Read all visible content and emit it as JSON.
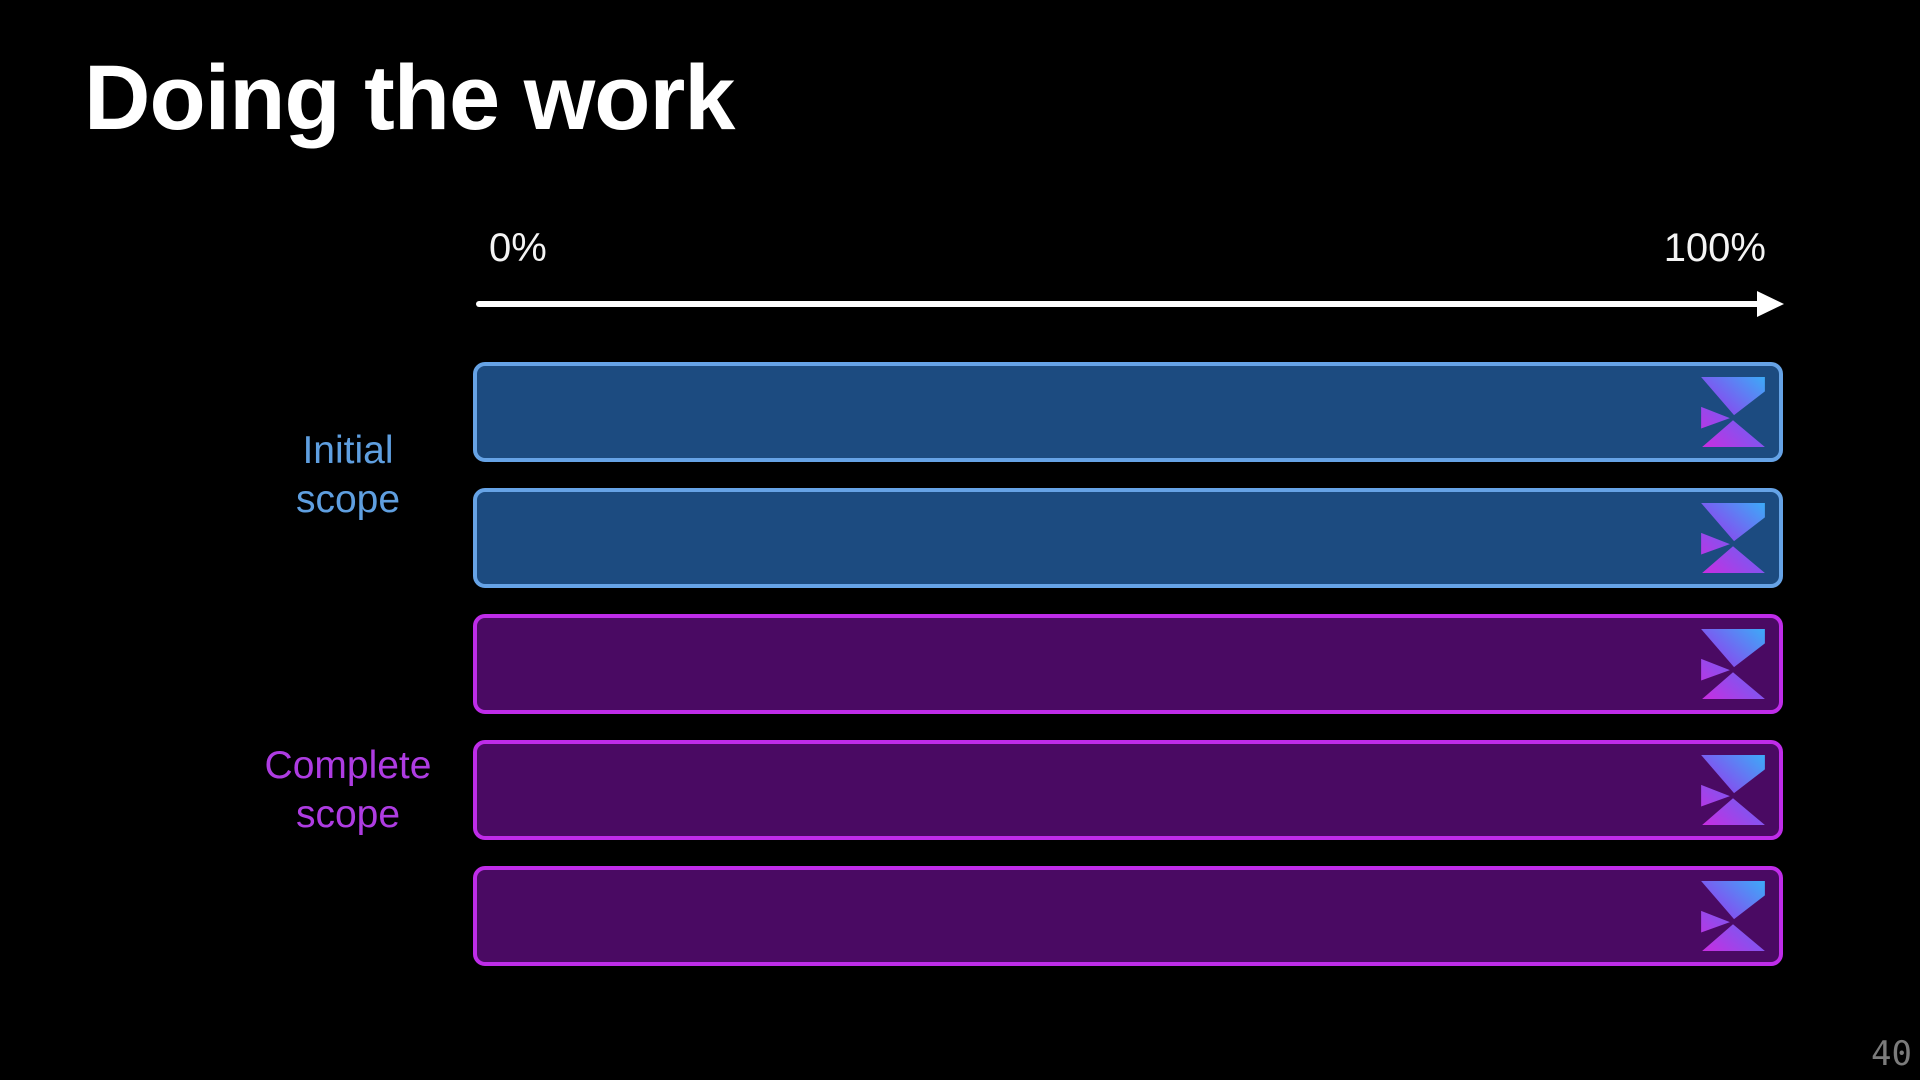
{
  "slide": {
    "title": "Doing the work",
    "page_number": "40",
    "background_color": "#000000"
  },
  "axis": {
    "start_label": "0%",
    "end_label": "100%",
    "color": "#ffffff",
    "arrow_direction": "right"
  },
  "chart_data": {
    "type": "bar",
    "orientation": "horizontal",
    "title": "Doing the work",
    "xlim": [
      0,
      100
    ],
    "x_tick_labels": [
      "0%",
      "100%"
    ],
    "grid": false,
    "legend_position": "left-of-bars",
    "groups": [
      {
        "label": "Initial scope",
        "label_lines": [
          "Initial",
          "scope"
        ],
        "values": [
          100,
          100
        ],
        "bar_fill": "#1c4b80",
        "bar_border": "#66a3e6",
        "label_color": "#5f9fe0"
      },
      {
        "label": "Complete scope",
        "label_lines": [
          "Complete",
          "scope"
        ],
        "values": [
          100,
          100,
          100
        ],
        "bar_fill": "#4a0a63",
        "bar_border": "#bf2ce9",
        "label_color": "#ae3ce2"
      }
    ],
    "bar_icon": "brand-triangle-logo",
    "icon_gradient": [
      "#cc2be0",
      "#7e57f0",
      "#3aaef8"
    ]
  }
}
